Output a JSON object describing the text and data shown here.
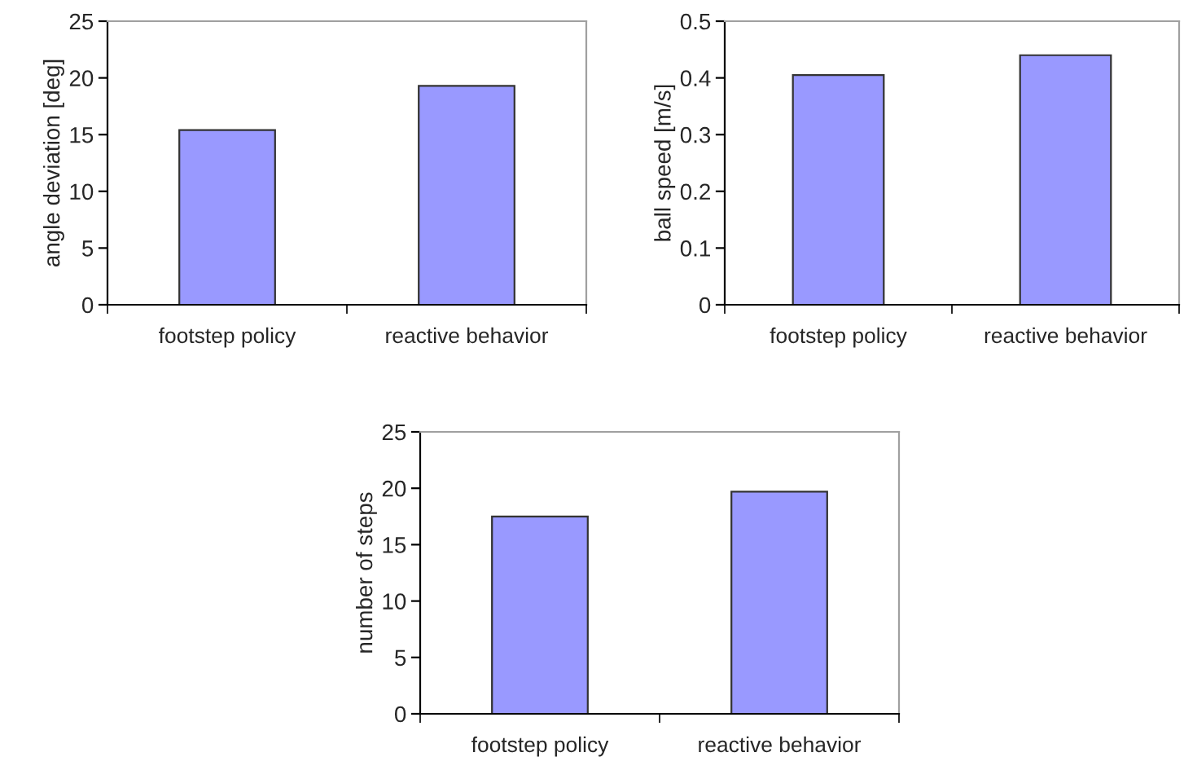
{
  "chart_data": [
    {
      "type": "bar",
      "ylabel": "angle deviation [deg]",
      "categories": [
        "footstep policy",
        "reactive behavior"
      ],
      "values": [
        15.4,
        19.3
      ],
      "color": "#9999ff",
      "ylim": [
        0,
        25
      ],
      "yticks": [
        0,
        5,
        10,
        15,
        20,
        25
      ],
      "grid": false,
      "legend": false
    },
    {
      "type": "bar",
      "ylabel": "ball speed [m/s]",
      "categories": [
        "footstep policy",
        "reactive behavior"
      ],
      "values": [
        0.405,
        0.44
      ],
      "color": "#9999ff",
      "ylim": [
        0,
        0.5
      ],
      "yticks": [
        0,
        0.1,
        0.2,
        0.3,
        0.4,
        0.5
      ],
      "grid": false,
      "legend": false
    },
    {
      "type": "bar",
      "ylabel": "number of steps",
      "categories": [
        "footstep policy",
        "reactive behavior"
      ],
      "values": [
        17.5,
        19.7
      ],
      "color": "#9999ff",
      "ylim": [
        0,
        25
      ],
      "yticks": [
        0,
        5,
        10,
        15,
        20,
        25
      ],
      "grid": false,
      "legend": false
    }
  ]
}
